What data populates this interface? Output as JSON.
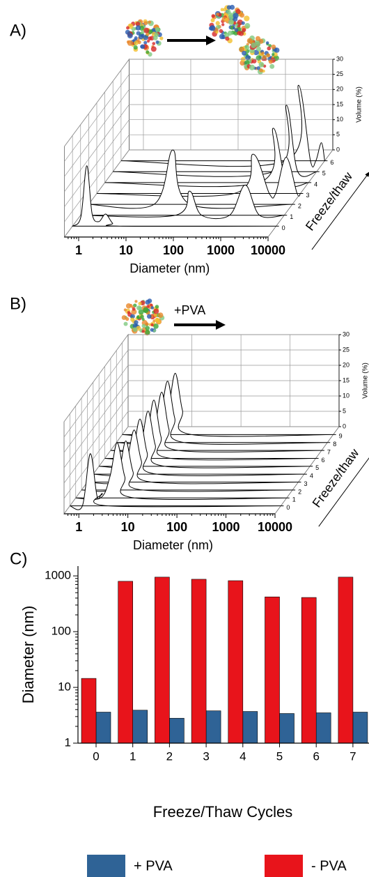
{
  "chart_data": [
    {
      "type": "waterfall",
      "label": "A)",
      "xlabel": "Diameter (nm)",
      "ylabel": "Volume (%)",
      "zlabel": "Freeze/thaw",
      "log_x": true,
      "xlim": [
        0.5,
        10000
      ],
      "xticks": [
        1,
        10,
        100,
        1000,
        10000
      ],
      "ylim": [
        0,
        30
      ],
      "yticks": [
        0,
        5,
        10,
        15,
        20,
        25,
        30
      ],
      "zlim": [
        -1,
        7
      ],
      "zticks": [
        0,
        1,
        2,
        3,
        4,
        5,
        6
      ],
      "grid": true,
      "series": [
        {
          "z": 0,
          "x": [
            0.5,
            0.75,
            1,
            1.3,
            1.8,
            2.5,
            3.5,
            5,
            10000
          ],
          "values": [
            0,
            3,
            20,
            4,
            1.5,
            4,
            1,
            0,
            0
          ]
        },
        {
          "z": 1,
          "x": [
            0.5,
            50,
            100,
            180,
            700,
            1500,
            3000,
            10000
          ],
          "values": [
            0,
            0,
            8,
            0,
            0,
            10,
            0,
            0
          ]
        },
        {
          "z": 2,
          "x": [
            0.5,
            12,
            30,
            70,
            10000
          ],
          "values": [
            0,
            0,
            18,
            0,
            0
          ]
        },
        {
          "z": 3,
          "x": [
            0.5,
            400,
            1000,
            2200,
            3000,
            5000,
            8500,
            10000
          ],
          "values": [
            0,
            0,
            13,
            0,
            0,
            12,
            0,
            0
          ]
        },
        {
          "z": 4,
          "x": [
            0.5,
            900,
            1800,
            3500,
            10000
          ],
          "values": [
            0,
            0,
            18,
            0,
            0
          ]
        },
        {
          "z": 5,
          "x": [
            0.5,
            1200,
            2300,
            4000,
            10000
          ],
          "values": [
            0,
            0,
            22,
            0,
            0
          ]
        },
        {
          "z": 6,
          "x": [
            0.5,
            1500,
            2800,
            5000,
            6500,
            8500,
            10000
          ],
          "values": [
            0,
            0,
            25,
            0,
            0,
            6,
            0
          ]
        }
      ]
    },
    {
      "type": "waterfall",
      "label": "B)",
      "annotation": "+PVA",
      "xlabel": "Diameter (nm)",
      "ylabel": "Volume (%)",
      "zlabel": "Freeze/thaw",
      "log_x": true,
      "xlim": [
        0.5,
        10000
      ],
      "xticks": [
        1,
        10,
        100,
        1000,
        10000
      ],
      "ylim": [
        0,
        30
      ],
      "yticks": [
        0,
        5,
        10,
        15,
        20,
        25,
        30
      ],
      "zlim": [
        -1,
        10
      ],
      "zticks": [
        0,
        1,
        2,
        3,
        4,
        5,
        6,
        7,
        8,
        9
      ],
      "grid": true,
      "series": [
        {
          "z": 0,
          "x": [
            0.5,
            0.9,
            1.3,
            1.8,
            2.3,
            3,
            10000
          ],
          "values": [
            0,
            0,
            17,
            3,
            4,
            0,
            0
          ]
        },
        {
          "z": 1,
          "x": [
            0.5,
            1.6,
            2.5,
            3.5,
            5,
            8,
            10000
          ],
          "values": [
            0,
            0,
            7,
            18,
            7,
            0,
            0
          ]
        },
        {
          "z": 2,
          "x": [
            0.5,
            1.8,
            2.9,
            4,
            5.6,
            9,
            10000
          ],
          "values": [
            0,
            0,
            6,
            16,
            6,
            0,
            0
          ]
        },
        {
          "z": 3,
          "x": [
            0.5,
            2,
            3.2,
            4.5,
            6.3,
            10,
            10000
          ],
          "values": [
            0,
            0,
            7,
            17,
            7,
            0,
            0
          ]
        },
        {
          "z": 4,
          "x": [
            0.5,
            2,
            3.2,
            4.5,
            6.3,
            10,
            10000
          ],
          "values": [
            0,
            0,
            7,
            18,
            7,
            0,
            0
          ]
        },
        {
          "z": 5,
          "x": [
            0.5,
            2.3,
            3.6,
            5,
            7,
            11,
            10000
          ],
          "values": [
            0,
            0,
            7,
            18,
            7,
            0,
            0
          ]
        },
        {
          "z": 6,
          "x": [
            0.5,
            2.3,
            3.6,
            5,
            7,
            11,
            10000
          ],
          "values": [
            0,
            0,
            7,
            19,
            7,
            0,
            0
          ]
        },
        {
          "z": 7,
          "x": [
            0.5,
            2.5,
            3.9,
            5.5,
            7.7,
            12,
            10000
          ],
          "values": [
            0,
            0,
            7,
            19,
            7,
            0,
            0
          ]
        },
        {
          "z": 8,
          "x": [
            0.5,
            2.5,
            3.9,
            5.5,
            7.7,
            12,
            10000
          ],
          "values": [
            0,
            0,
            8,
            20,
            8,
            0,
            0
          ]
        },
        {
          "z": 9,
          "x": [
            0.5,
            2.7,
            4.3,
            6,
            8.4,
            13,
            10000
          ],
          "values": [
            0,
            0,
            8,
            20,
            8,
            0,
            0
          ]
        }
      ]
    },
    {
      "type": "bar",
      "label": "C)",
      "xlabel": "Freeze/Thaw Cycles",
      "ylabel": "Diameter (nm)",
      "log_y": true,
      "ylim": [
        1,
        1500
      ],
      "yticks": [
        1,
        10,
        100,
        1000
      ],
      "categories": [
        "0",
        "1",
        "2",
        "3",
        "4",
        "5",
        "6",
        "7"
      ],
      "series": [
        {
          "name": "+ PVA",
          "color": "#2f6396",
          "values": [
            3.6,
            3.9,
            2.8,
            3.8,
            3.7,
            3.4,
            3.5,
            3.6
          ]
        },
        {
          "name": "- PVA",
          "color": "#e8141b",
          "values": [
            14.5,
            800,
            950,
            870,
            820,
            420,
            410,
            950
          ]
        }
      ]
    }
  ]
}
